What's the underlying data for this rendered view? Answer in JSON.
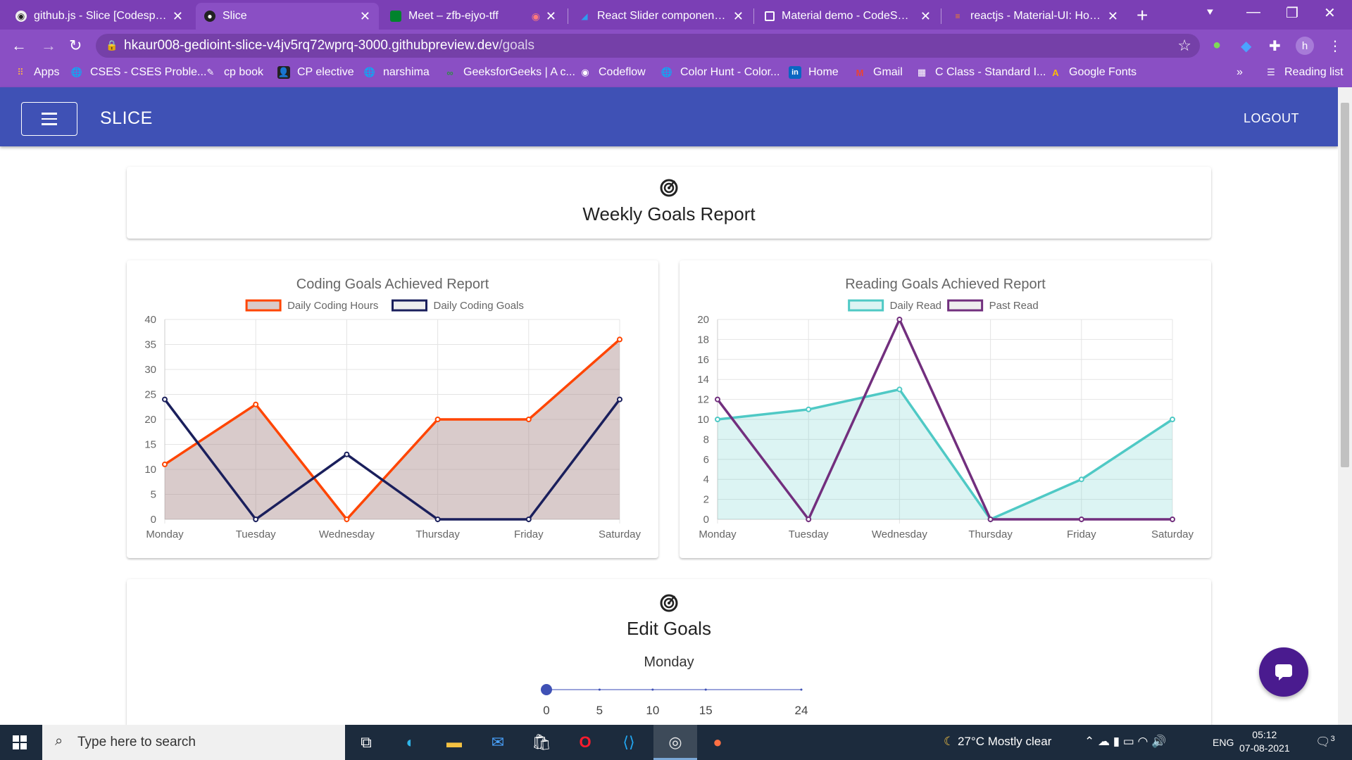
{
  "browser": {
    "tabs": [
      {
        "title": "github.js - Slice [Codespaces]",
        "icon": "github-icon"
      },
      {
        "title": "Slice",
        "icon": "github-icon"
      },
      {
        "title": "Meet – zfb-ejyo-tff",
        "icon": "meet-icon"
      },
      {
        "title": "React Slider component - Material-UI",
        "icon": "mui-icon"
      },
      {
        "title": "Material demo - CodeSandbox",
        "icon": "codesandbox-icon"
      },
      {
        "title": "reactjs - Material-UI: How to",
        "icon": "stackoverflow-icon"
      }
    ],
    "url_host": "hkaur008-gedioint-slice-v4jv5rq72wprq-3000.githubpreview.dev",
    "url_path": "/goals",
    "profile_initial": "h",
    "bookmarks": [
      "Apps",
      "CSES - CSES Proble...",
      "cp book",
      "CP elective",
      "narshima",
      "GeeksforGeeks | A c...",
      "Codeflow",
      "Color Hunt - Color...",
      "Home",
      "Gmail",
      "C Class - Standard I...",
      "Google Fonts"
    ],
    "more_bookmarks": "»",
    "reading_list": "Reading list"
  },
  "app": {
    "brand": "SLICE",
    "logout": "LOGOUT",
    "header_title": "Weekly Goals Report",
    "edit_title": "Edit Goals",
    "slider_day": "Monday",
    "slider": {
      "value": 0,
      "min": 0,
      "max": 24,
      "ticks": [
        "0",
        "5",
        "10",
        "15",
        "24"
      ]
    },
    "colors": {
      "primary": "#3f51b5",
      "coding_hours": "#ff4500",
      "coding_goals": "#1a1f5c",
      "daily_read": "#4fc9c5",
      "past_read": "#722f7e"
    }
  },
  "chart_data": [
    {
      "type": "line",
      "title": "Coding Goals Achieved Report",
      "categories": [
        "Monday",
        "Tuesday",
        "Wednesday",
        "Thursday",
        "Friday",
        "Saturday"
      ],
      "series": [
        {
          "name": "Daily Coding Hours",
          "values": [
            11,
            23,
            0,
            20,
            20,
            36
          ],
          "color": "#ff4500",
          "fill": "rgba(170,140,140,0.45)"
        },
        {
          "name": "Daily Coding Goals",
          "values": [
            24,
            0,
            13,
            0,
            0,
            24
          ],
          "color": "#1a1f5c",
          "fill": "none"
        }
      ],
      "ylim": [
        0,
        40
      ],
      "yticks": [
        "0",
        "5",
        "10",
        "15",
        "20",
        "25",
        "30",
        "35",
        "40"
      ],
      "legend": "top"
    },
    {
      "type": "line",
      "title": "Reading Goals Achieved Report",
      "categories": [
        "Monday",
        "Tuesday",
        "Wednesday",
        "Thursday",
        "Friday",
        "Saturday"
      ],
      "series": [
        {
          "name": "Daily Read",
          "values": [
            10,
            11,
            13,
            0,
            4,
            10
          ],
          "color": "#4fc9c5",
          "fill": "rgba(79,201,197,0.2)"
        },
        {
          "name": "Past Read",
          "values": [
            12,
            0,
            20,
            0,
            0,
            0
          ],
          "color": "#722f7e",
          "fill": "none"
        }
      ],
      "ylim": [
        0,
        20
      ],
      "yticks": [
        "0",
        "2",
        "4",
        "6",
        "8",
        "10",
        "12",
        "14",
        "16",
        "18",
        "20"
      ],
      "legend": "top"
    }
  ],
  "taskbar": {
    "search_placeholder": "Type here to search",
    "weather": "27°C  Mostly clear",
    "lang": "ENG",
    "time": "05:12",
    "date": "07-08-2021",
    "notif_count": "3"
  }
}
